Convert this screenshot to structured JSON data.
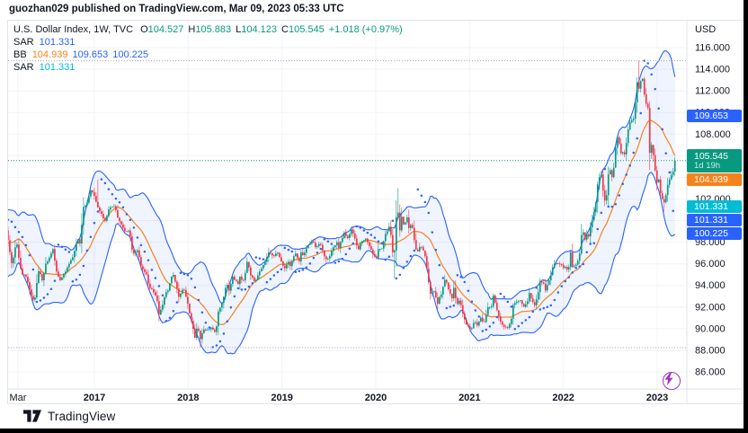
{
  "page": {
    "caption": "guozhan029 published on TradingView.com, Mar 09, 2023 05:33 UTC"
  },
  "footer": {
    "brand": "TradingView"
  },
  "legend": {
    "title": "U.S. Dollar Index, 1W, TVC",
    "ohlc": {
      "o_label": "O",
      "o": "104.527",
      "h_label": "H",
      "h": "105.883",
      "l_label": "L",
      "l": "104.123",
      "c_label": "C",
      "c": "105.545",
      "change": "+1.018 (+0.97%)"
    },
    "rows": [
      {
        "label": "SAR",
        "values": [
          {
            "text": "101.331",
            "color": "#2962FF"
          }
        ]
      },
      {
        "label": "BB",
        "values": [
          {
            "text": "104.939",
            "color": "#F7821C"
          },
          {
            "text": "109.653",
            "color": "#2962FF"
          },
          {
            "text": "100.225",
            "color": "#2962FF"
          }
        ]
      },
      {
        "label": "SAR",
        "values": [
          {
            "text": "101.331",
            "color": "#00BCD4"
          }
        ]
      }
    ]
  },
  "price_scale": {
    "unit": "USD",
    "ticks": [
      116,
      114,
      112,
      110,
      108,
      106,
      104,
      102,
      100,
      98,
      96,
      94,
      92,
      90,
      88,
      86
    ],
    "badges": [
      {
        "text": "109.653",
        "price": 109.653,
        "bg": "#2962FF"
      },
      {
        "text": "105.545",
        "price": 105.545,
        "bg": "#089981",
        "countdown": "1d 19h"
      },
      {
        "text": "104.939",
        "price": 104.939,
        "bg": "#F7821C"
      },
      {
        "text": "101.331",
        "price": 101.331,
        "bg": "#00BCD4"
      },
      {
        "text": "101.331",
        "price": 101.331,
        "bg": "#2962FF"
      },
      {
        "text": "100.225",
        "price": 100.225,
        "bg": "#2962FF"
      }
    ]
  },
  "time_scale": {
    "labels": [
      {
        "text": "Mar",
        "t": 2016.185
      },
      {
        "text": "2017",
        "t": 2017
      },
      {
        "text": "2018",
        "t": 2018
      },
      {
        "text": "2019",
        "t": 2019
      },
      {
        "text": "2020",
        "t": 2020
      },
      {
        "text": "2021",
        "t": 2021
      },
      {
        "text": "2022",
        "t": 2022
      },
      {
        "text": "2023",
        "t": 2023
      }
    ]
  },
  "chart_data": {
    "type": "candlestick",
    "title": "U.S. Dollar Index, 1W, TVC",
    "symbol": "U.S. Dollar Index",
    "timeframe": "1W",
    "exchange": "TVC",
    "colors": {
      "up": "#089981",
      "down": "#F23645",
      "bb_band": "#2962FF",
      "bb_basis": "#F7821C",
      "sar": "#2962FF",
      "sar2": "#00BCD4",
      "grid": "#F0F3FA",
      "border": "#E0E3EB",
      "text": "#131722",
      "current_price_line": "#089981",
      "range_line": "#A5A8B1"
    },
    "y_axis": {
      "unit": "USD",
      "tick_step": 2,
      "tick_min": 86,
      "tick_max": 116,
      "visible_min": 84.5,
      "visible_max": 118.5,
      "label_format_decimals": 3
    },
    "x_axis": {
      "start": 2015.6,
      "end": 2023.185,
      "bars_per_year": 52.18,
      "grid": true
    },
    "last_bar": {
      "open": 104.527,
      "high": 105.883,
      "low": 104.123,
      "close": 105.545,
      "change": "+1.018",
      "change_pct": "+0.97%"
    },
    "price_levels": {
      "current": 105.545,
      "range_high": 114.78,
      "range_low": 88.25
    },
    "indicators": [
      {
        "name": "SAR",
        "start": 0.02,
        "increment": 0.02,
        "max": 0.2,
        "last_value": 101.331,
        "color": "#2962FF"
      },
      {
        "name": "BB",
        "period": 20,
        "stddev": 2,
        "basis": 104.939,
        "upper": 109.653,
        "lower": 100.225
      },
      {
        "name": "SAR",
        "start": 0.02,
        "increment": 0.02,
        "max": 0.2,
        "last_value": 101.331,
        "color": "#00BCD4"
      }
    ],
    "weekly_close_keypoints": [
      [
        2015.6,
        97.2
      ],
      [
        2015.65,
        95.0
      ],
      [
        2015.7,
        96.2
      ],
      [
        2015.75,
        96.0
      ],
      [
        2015.8,
        94.9
      ],
      [
        2015.85,
        99.0
      ],
      [
        2015.9,
        100.0
      ],
      [
        2015.95,
        98.2
      ],
      [
        2016.0,
        98.8
      ],
      [
        2016.05,
        99.6
      ],
      [
        2016.1,
        97.0
      ],
      [
        2016.12,
        95.9
      ],
      [
        2016.17,
        98.1
      ],
      [
        2016.22,
        95.1
      ],
      [
        2016.28,
        94.7
      ],
      [
        2016.33,
        93.0
      ],
      [
        2016.36,
        92.6
      ],
      [
        2016.41,
        95.6
      ],
      [
        2016.45,
        94.3
      ],
      [
        2016.47,
        95.8
      ],
      [
        2016.52,
        96.6
      ],
      [
        2016.56,
        97.3
      ],
      [
        2016.59,
        95.5
      ],
      [
        2016.63,
        94.5
      ],
      [
        2016.7,
        95.4
      ],
      [
        2016.77,
        96.6
      ],
      [
        2016.82,
        98.3
      ],
      [
        2016.85,
        97.9
      ],
      [
        2016.88,
        101.2
      ],
      [
        2016.92,
        101.5
      ],
      [
        2016.97,
        103.0
      ],
      [
        2017.0,
        102.2
      ],
      [
        2017.04,
        101.2
      ],
      [
        2017.08,
        100.5
      ],
      [
        2017.12,
        99.9
      ],
      [
        2017.15,
        101.1
      ],
      [
        2017.21,
        101.4
      ],
      [
        2017.25,
        100.3
      ],
      [
        2017.32,
        99.0
      ],
      [
        2017.37,
        99.2
      ],
      [
        2017.41,
        96.9
      ],
      [
        2017.46,
        97.3
      ],
      [
        2017.5,
        95.6
      ],
      [
        2017.55,
        95.1
      ],
      [
        2017.58,
        93.9
      ],
      [
        2017.63,
        93.4
      ],
      [
        2017.67,
        92.6
      ],
      [
        2017.69,
        91.3
      ],
      [
        2017.73,
        92.2
      ],
      [
        2017.75,
        93.1
      ],
      [
        2017.79,
        93.6
      ],
      [
        2017.82,
        94.9
      ],
      [
        2017.85,
        94.9
      ],
      [
        2017.9,
        92.9
      ],
      [
        2017.95,
        93.9
      ],
      [
        2018.0,
        92.1
      ],
      [
        2018.04,
        90.5
      ],
      [
        2018.07,
        89.1
      ],
      [
        2018.1,
        90.3
      ],
      [
        2018.13,
        89.1
      ],
      [
        2018.16,
        89.9
      ],
      [
        2018.21,
        90.0
      ],
      [
        2018.25,
        90.1
      ],
      [
        2018.29,
        89.5
      ],
      [
        2018.32,
        91.5
      ],
      [
        2018.37,
        92.6
      ],
      [
        2018.39,
        93.6
      ],
      [
        2018.41,
        94.2
      ],
      [
        2018.44,
        93.5
      ],
      [
        2018.47,
        94.8
      ],
      [
        2018.5,
        94.5
      ],
      [
        2018.53,
        94.1
      ],
      [
        2018.55,
        94.8
      ],
      [
        2018.58,
        94.3
      ],
      [
        2018.61,
        95.2
      ],
      [
        2018.63,
        96.3
      ],
      [
        2018.66,
        95.1
      ],
      [
        2018.71,
        94.2
      ],
      [
        2018.75,
        95.1
      ],
      [
        2018.79,
        95.6
      ],
      [
        2018.83,
        96.4
      ],
      [
        2018.86,
        97.0
      ],
      [
        2018.91,
        96.8
      ],
      [
        2018.95,
        97.0
      ],
      [
        2019.0,
        96.1
      ],
      [
        2019.03,
        95.6
      ],
      [
        2019.07,
        96.3
      ],
      [
        2019.09,
        95.8
      ],
      [
        2019.12,
        96.6
      ],
      [
        2019.15,
        97.0
      ],
      [
        2019.18,
        96.0
      ],
      [
        2019.21,
        97.3
      ],
      [
        2019.23,
        96.6
      ],
      [
        2019.25,
        97.3
      ],
      [
        2019.32,
        98.2
      ],
      [
        2019.36,
        97.5
      ],
      [
        2019.4,
        98.0
      ],
      [
        2019.45,
        96.8
      ],
      [
        2019.48,
        96.2
      ],
      [
        2019.54,
        97.3
      ],
      [
        2019.58,
        98.0
      ],
      [
        2019.61,
        97.5
      ],
      [
        2019.66,
        98.9
      ],
      [
        2019.7,
        98.4
      ],
      [
        2019.74,
        99.1
      ],
      [
        2019.78,
        98.3
      ],
      [
        2019.81,
        97.2
      ],
      [
        2019.85,
        98.2
      ],
      [
        2019.9,
        98.3
      ],
      [
        2019.93,
        97.7
      ],
      [
        2020.0,
        96.4
      ],
      [
        2020.03,
        97.4
      ],
      [
        2020.07,
        97.4
      ],
      [
        2020.1,
        98.7
      ],
      [
        2020.13,
        99.1
      ],
      [
        2020.15,
        99.5
      ],
      [
        2020.17,
        98.1
      ],
      [
        2020.19,
        96.0
      ],
      [
        2020.21,
        98.7
      ],
      [
        2020.23,
        102.4
      ],
      [
        2020.25,
        98.3
      ],
      [
        2020.27,
        100.6
      ],
      [
        2020.3,
        99.5
      ],
      [
        2020.33,
        100.4
      ],
      [
        2020.36,
        99.0
      ],
      [
        2020.38,
        100.0
      ],
      [
        2020.41,
        98.3
      ],
      [
        2020.44,
        96.9
      ],
      [
        2020.47,
        97.6
      ],
      [
        2020.5,
        97.4
      ],
      [
        2020.53,
        96.6
      ],
      [
        2020.56,
        94.4
      ],
      [
        2020.58,
        93.3
      ],
      [
        2020.62,
        93.4
      ],
      [
        2020.66,
        92.4
      ],
      [
        2020.7,
        93.3
      ],
      [
        2020.74,
        94.6
      ],
      [
        2020.77,
        93.8
      ],
      [
        2020.81,
        92.7
      ],
      [
        2020.83,
        94.0
      ],
      [
        2020.86,
        92.2
      ],
      [
        2020.89,
        92.7
      ],
      [
        2020.92,
        91.8
      ],
      [
        2020.95,
        90.7
      ],
      [
        2021.0,
        89.9
      ],
      [
        2021.03,
        90.1
      ],
      [
        2021.05,
        90.8
      ],
      [
        2021.08,
        90.2
      ],
      [
        2021.12,
        91.0
      ],
      [
        2021.15,
        90.3
      ],
      [
        2021.17,
        90.9
      ],
      [
        2021.19,
        92.0
      ],
      [
        2021.23,
        91.9
      ],
      [
        2021.25,
        93.2
      ],
      [
        2021.28,
        92.2
      ],
      [
        2021.32,
        90.9
      ],
      [
        2021.36,
        90.2
      ],
      [
        2021.4,
        90.0
      ],
      [
        2021.44,
        90.5
      ],
      [
        2021.46,
        92.2
      ],
      [
        2021.5,
        92.4
      ],
      [
        2021.54,
        92.7
      ],
      [
        2021.58,
        92.1
      ],
      [
        2021.62,
        92.5
      ],
      [
        2021.64,
        93.5
      ],
      [
        2021.66,
        92.7
      ],
      [
        2021.69,
        92.1
      ],
      [
        2021.73,
        93.2
      ],
      [
        2021.75,
        94.3
      ],
      [
        2021.79,
        94.1
      ],
      [
        2021.81,
        93.6
      ],
      [
        2021.84,
        94.3
      ],
      [
        2021.87,
        95.1
      ],
      [
        2021.9,
        96.1
      ],
      [
        2021.93,
        96.1
      ],
      [
        2021.97,
        96.0
      ],
      [
        2022.0,
        95.7
      ],
      [
        2022.03,
        95.7
      ],
      [
        2022.05,
        95.2
      ],
      [
        2022.08,
        97.2
      ],
      [
        2022.1,
        95.5
      ],
      [
        2022.13,
        96.0
      ],
      [
        2022.15,
        96.1
      ],
      [
        2022.17,
        96.6
      ],
      [
        2022.19,
        98.5
      ],
      [
        2022.21,
        99.1
      ],
      [
        2022.23,
        98.2
      ],
      [
        2022.25,
        98.8
      ],
      [
        2022.27,
        98.6
      ],
      [
        2022.3,
        99.8
      ],
      [
        2022.32,
        100.5
      ],
      [
        2022.34,
        101.2
      ],
      [
        2022.36,
        103.2
      ],
      [
        2022.38,
        103.7
      ],
      [
        2022.4,
        104.6
      ],
      [
        2022.42,
        103.0
      ],
      [
        2022.44,
        101.7
      ],
      [
        2022.46,
        102.2
      ],
      [
        2022.48,
        104.2
      ],
      [
        2022.5,
        104.7
      ],
      [
        2022.52,
        104.0
      ],
      [
        2022.54,
        105.1
      ],
      [
        2022.56,
        107.0
      ],
      [
        2022.58,
        108.0
      ],
      [
        2022.6,
        106.7
      ],
      [
        2022.62,
        105.9
      ],
      [
        2022.64,
        106.6
      ],
      [
        2022.66,
        105.7
      ],
      [
        2022.68,
        108.1
      ],
      [
        2022.7,
        108.8
      ],
      [
        2022.72,
        109.5
      ],
      [
        2022.74,
        109.0
      ],
      [
        2022.76,
        109.8
      ],
      [
        2022.78,
        113.0
      ],
      [
        2022.8,
        112.1
      ],
      [
        2022.82,
        112.8
      ],
      [
        2022.84,
        113.3
      ],
      [
        2022.86,
        112.0
      ],
      [
        2022.88,
        110.7
      ],
      [
        2022.9,
        110.8
      ],
      [
        2022.92,
        106.3
      ],
      [
        2022.94,
        107.0
      ],
      [
        2022.96,
        106.0
      ],
      [
        2022.98,
        104.5
      ],
      [
        2023.0,
        103.5
      ],
      [
        2023.02,
        103.9
      ],
      [
        2023.04,
        102.2
      ],
      [
        2023.06,
        101.9
      ],
      [
        2023.08,
        101.6
      ],
      [
        2023.1,
        102.9
      ],
      [
        2023.12,
        103.6
      ],
      [
        2023.14,
        103.9
      ],
      [
        2023.16,
        104.6
      ],
      [
        2023.17,
        104.5
      ],
      [
        2023.185,
        105.545
      ]
    ],
    "wick_events": [
      {
        "t": 2017.04,
        "high": 103.82
      },
      {
        "t": 2018.13,
        "low": 88.25
      },
      {
        "t": 2020.19,
        "low": 94.65
      },
      {
        "t": 2020.23,
        "high": 102.99
      },
      {
        "t": 2022.8,
        "high": 114.78
      },
      {
        "t": 2023.08,
        "low": 100.82
      }
    ]
  }
}
